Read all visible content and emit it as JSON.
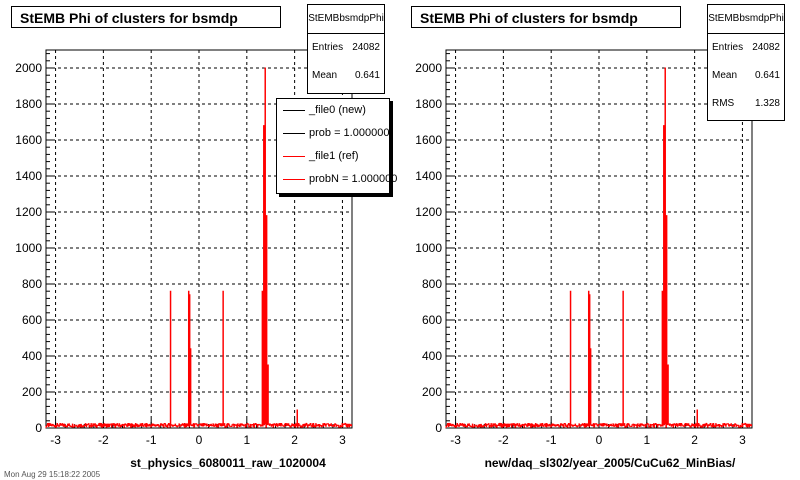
{
  "left": {
    "title": "StEMB Phi of clusters for bsmdp",
    "stats": {
      "title": "StEMBbsmdpPhi",
      "entries_label": "Entries",
      "entries": "24082",
      "mean_label": "Mean",
      "mean": "0.641"
    },
    "legend": [
      {
        "label": "_file0 (new)",
        "color": "#000000"
      },
      {
        "label": "prob = 1.000000",
        "color": "#000000"
      },
      {
        "label": "_file1 (ref)",
        "color": "#ff0000"
      },
      {
        "label": "probN = 1.000000",
        "color": "#ff0000"
      }
    ],
    "xlabel": "st_physics_6080011_raw_1020004"
  },
  "right": {
    "title": "StEMB Phi of clusters for bsmdp",
    "stats": {
      "title": "StEMBbsmdpPhi",
      "entries_label": "Entries",
      "entries": "24082",
      "mean_label": "Mean",
      "mean": "0.641",
      "rms_label": "RMS",
      "rms": "1.328"
    },
    "xlabel": "new/daq_sl302/year_2005/CuCu62_MinBias/"
  },
  "footer": "Mon Aug 29 15:18:22 2005",
  "chart_data": [
    {
      "type": "line",
      "title": "StEMB Phi of clusters for bsmdp",
      "xlabel": "st_physics_6080011_raw_1020004",
      "ylabel": "",
      "xlim": [
        -3.2,
        3.2
      ],
      "ylim": [
        0,
        2100
      ],
      "xticks": [
        -3,
        -2,
        -1,
        0,
        1,
        2,
        3
      ],
      "yticks": [
        0,
        200,
        400,
        600,
        800,
        1000,
        1200,
        1400,
        1600,
        1800,
        2000
      ],
      "grid": true,
      "legend_position": "top-right",
      "series": [
        {
          "name": "_file0 (new)",
          "color": "#000000"
        },
        {
          "name": "_file1 (ref)",
          "color": "#ff0000"
        }
      ],
      "baseline": 15,
      "peaks": [
        {
          "x": -0.6,
          "y": 760
        },
        {
          "x": -0.22,
          "y": 760
        },
        {
          "x": -0.2,
          "y": 740
        },
        {
          "x": -0.18,
          "y": 440
        },
        {
          "x": 0.5,
          "y": 760
        },
        {
          "x": 1.32,
          "y": 760
        },
        {
          "x": 1.35,
          "y": 1680
        },
        {
          "x": 1.38,
          "y": 2000
        },
        {
          "x": 1.41,
          "y": 1180
        },
        {
          "x": 1.44,
          "y": 350
        },
        {
          "x": 2.05,
          "y": 100
        }
      ]
    },
    {
      "type": "line",
      "title": "StEMB Phi of clusters for bsmdp",
      "xlabel": "new/daq_sl302/year_2005/CuCu62_MinBias/",
      "ylabel": "",
      "xlim": [
        -3.2,
        3.2
      ],
      "ylim": [
        0,
        2100
      ],
      "xticks": [
        -3,
        -2,
        -1,
        0,
        1,
        2,
        3
      ],
      "yticks": [
        0,
        200,
        400,
        600,
        800,
        1000,
        1200,
        1400,
        1600,
        1800,
        2000
      ],
      "grid": true,
      "series": [
        {
          "name": "",
          "color": "#ff0000"
        }
      ],
      "baseline": 15,
      "peaks": [
        {
          "x": -0.6,
          "y": 760
        },
        {
          "x": -0.22,
          "y": 760
        },
        {
          "x": -0.2,
          "y": 740
        },
        {
          "x": -0.18,
          "y": 440
        },
        {
          "x": 0.5,
          "y": 760
        },
        {
          "x": 1.32,
          "y": 760
        },
        {
          "x": 1.35,
          "y": 1680
        },
        {
          "x": 1.38,
          "y": 2000
        },
        {
          "x": 1.41,
          "y": 1180
        },
        {
          "x": 1.44,
          "y": 350
        },
        {
          "x": 2.05,
          "y": 100
        }
      ]
    }
  ]
}
